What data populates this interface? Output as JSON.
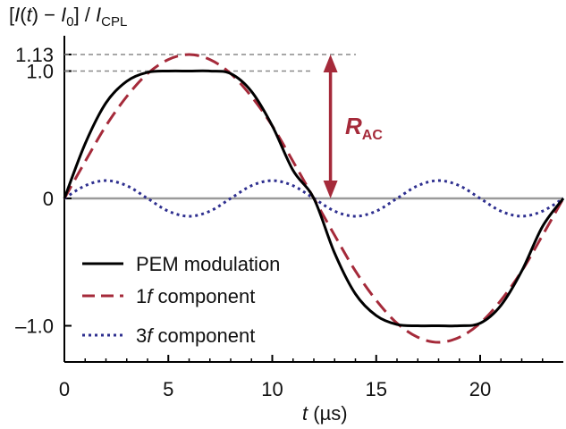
{
  "chart_data": {
    "type": "line",
    "xlabel": "t (µs)",
    "ylabel": "[I(t) − I0] / ICPL",
    "xlim": [
      0,
      24
    ],
    "ylim": [
      -1.25,
      1.25
    ],
    "x_ticks": [
      0,
      5,
      10,
      15,
      20
    ],
    "x_tick_labels": [
      "0",
      "5",
      "10",
      "15",
      "20"
    ],
    "y_tick_labels": [
      "1.13",
      "1.0",
      "0",
      "–1.0"
    ],
    "y_tick_values": [
      1.13,
      1.0,
      0,
      -1.0
    ],
    "x": [
      0,
      1,
      2,
      3,
      4,
      5,
      6,
      7,
      8,
      9,
      10,
      11,
      12,
      13,
      14,
      15,
      16,
      17,
      18,
      19,
      20,
      21,
      22,
      23,
      24
    ],
    "series": [
      {
        "name": "PEM modulation",
        "color": "#000000",
        "style": "solid",
        "values": [
          0,
          0.43,
          0.75,
          0.92,
          0.99,
          1.0,
          1.0,
          1.0,
          0.98,
          0.84,
          0.57,
          0.22,
          0,
          -0.43,
          -0.75,
          -0.92,
          -0.99,
          -1.0,
          -1.0,
          -1.0,
          -0.98,
          -0.84,
          -0.57,
          -0.22,
          0
        ]
      },
      {
        "name": "1f component",
        "color": "#a52a3a",
        "style": "dashed",
        "values": [
          0,
          0.29,
          0.57,
          0.8,
          0.98,
          1.09,
          1.13,
          1.09,
          0.98,
          0.8,
          0.57,
          0.29,
          0,
          -0.29,
          -0.57,
          -0.8,
          -0.98,
          -1.09,
          -1.13,
          -1.09,
          -0.98,
          -0.8,
          -0.57,
          -0.29,
          0
        ]
      },
      {
        "name": "3f component",
        "color": "#2e2f8f",
        "style": "dotted",
        "values": [
          0,
          0.1,
          0.14,
          0.1,
          0,
          -0.1,
          -0.14,
          -0.1,
          0,
          0.1,
          0.14,
          0.1,
          0,
          -0.1,
          -0.14,
          -0.1,
          0,
          0.1,
          0.14,
          0.1,
          0,
          -0.1,
          -0.14,
          -0.1,
          0
        ]
      }
    ],
    "annotations": {
      "rac_main": "R",
      "rac_sub": "AC",
      "rac_color": "#a52a3a",
      "rac_x": 12.8,
      "rac_from": 0,
      "rac_to": 1.13
    },
    "reference_lines": [
      1.13,
      1.0
    ],
    "legend_placement": "bottom-left",
    "grid": false
  }
}
